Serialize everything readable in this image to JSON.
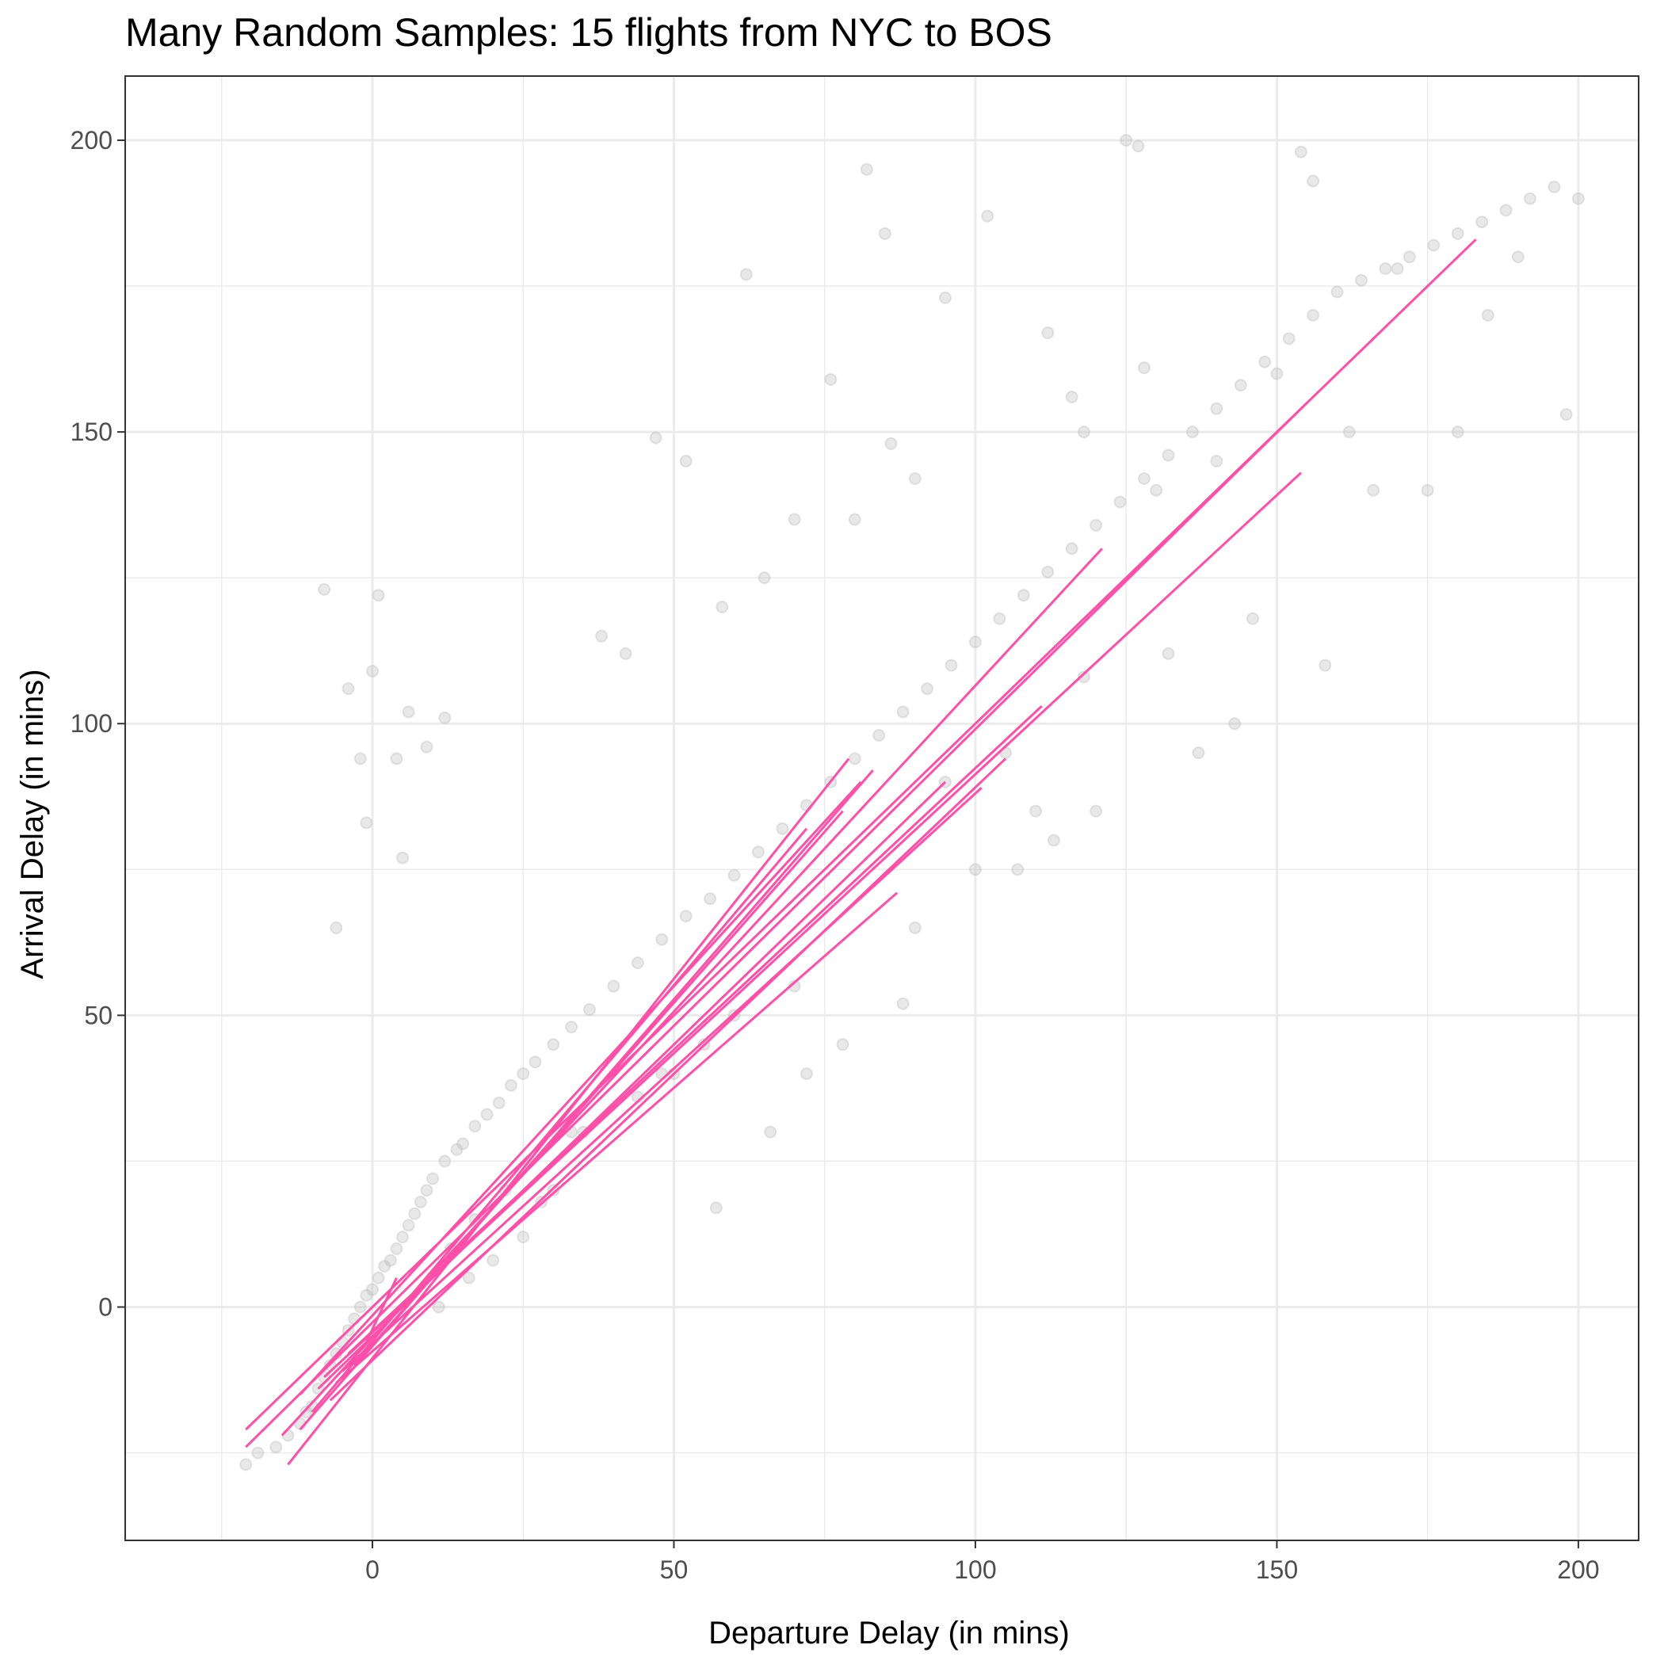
{
  "chart_data": {
    "type": "scatter",
    "title": "Many Random Samples: 15 flights from NYC to BOS",
    "xlabel": "Departure Delay (in mins)",
    "ylabel": "Arrival Delay (in mins)",
    "xlim": [
      -41,
      210
    ],
    "ylim": [
      -40,
      211
    ],
    "x_ticks": [
      0,
      50,
      100,
      150,
      200
    ],
    "y_ticks": [
      0,
      50,
      100,
      150,
      200
    ],
    "x_tick_labels": [
      "0",
      "50",
      "100",
      "150",
      "200"
    ],
    "y_tick_labels": [
      "0",
      "50",
      "100",
      "150",
      "200"
    ],
    "grid": true,
    "legend": "none",
    "colors": {
      "points": "#bebebe",
      "lines": "#ff4fa8",
      "panel_border": "#333333",
      "grid": "#ebebeb"
    },
    "series": [
      {
        "kind": "points",
        "x": [
          -21,
          -19,
          -16,
          -14,
          -12,
          -11,
          -10,
          -9,
          -8,
          -7,
          -6,
          -5,
          -4,
          -3,
          -2,
          -1,
          0,
          1,
          2,
          3,
          4,
          5,
          6,
          7,
          8,
          9,
          10,
          12,
          14,
          15,
          17,
          19,
          21,
          23,
          25,
          27,
          30,
          33,
          36,
          40,
          44,
          48,
          52,
          56,
          60,
          64,
          68,
          72,
          76,
          80,
          84,
          88,
          92,
          96,
          100,
          104,
          108,
          112,
          116,
          120,
          124,
          128,
          132,
          136,
          140,
          144,
          148,
          152,
          156,
          160,
          164,
          168,
          172,
          176,
          180,
          184,
          188,
          192,
          196,
          200,
          -8,
          -4,
          0,
          -2,
          1,
          4,
          6,
          9,
          12,
          62,
          82,
          85,
          95,
          102,
          125,
          127,
          154,
          156,
          47,
          52,
          38,
          42,
          5,
          -6,
          -1,
          128,
          112,
          116,
          118,
          70,
          76,
          80,
          65,
          58,
          86,
          90,
          130,
          140,
          150,
          162,
          170,
          185,
          198,
          57,
          66,
          72,
          78,
          88,
          107,
          113,
          120,
          137,
          143,
          158,
          175,
          190,
          35,
          48,
          55,
          60,
          25,
          28,
          30,
          20,
          16,
          11,
          13,
          17,
          22,
          26,
          33,
          44,
          50,
          70,
          90,
          100,
          110,
          95,
          105,
          118,
          132,
          146,
          166,
          180
        ],
        "y": [
          -27,
          -25,
          -24,
          -22,
          -20,
          -18,
          -17,
          -14,
          -12,
          -10,
          -8,
          -6,
          -4,
          -2,
          0,
          2,
          3,
          5,
          7,
          8,
          10,
          12,
          14,
          16,
          18,
          20,
          22,
          25,
          27,
          28,
          31,
          33,
          35,
          38,
          40,
          42,
          45,
          48,
          51,
          55,
          59,
          63,
          67,
          70,
          74,
          78,
          82,
          86,
          90,
          94,
          98,
          102,
          106,
          110,
          114,
          118,
          122,
          126,
          130,
          134,
          138,
          142,
          146,
          150,
          154,
          158,
          162,
          166,
          170,
          174,
          176,
          178,
          180,
          182,
          184,
          186,
          188,
          190,
          192,
          190,
          123,
          106,
          109,
          94,
          122,
          94,
          102,
          96,
          101,
          177,
          195,
          184,
          173,
          187,
          200,
          199,
          198,
          193,
          149,
          145,
          115,
          112,
          77,
          65,
          83,
          161,
          167,
          156,
          150,
          135,
          159,
          135,
          125,
          120,
          148,
          142,
          140,
          145,
          160,
          150,
          178,
          170,
          153,
          17,
          30,
          40,
          45,
          52,
          75,
          80,
          85,
          95,
          100,
          110,
          140,
          180,
          30,
          40,
          45,
          50,
          12,
          18,
          20,
          8,
          5,
          0,
          10,
          15,
          20,
          25,
          30,
          36,
          40,
          55,
          65,
          75,
          85,
          90,
          95,
          108,
          112,
          118,
          140,
          150
        ]
      },
      {
        "kind": "fitted-lines",
        "lines": [
          [
            -21,
            -21,
            183,
            183
          ],
          [
            -21,
            -24,
            155,
            155
          ],
          [
            -15,
            -22,
            121,
            130
          ],
          [
            -14,
            -27,
            79,
            94
          ],
          [
            -12,
            -21,
            83,
            92
          ],
          [
            -10,
            -18,
            72,
            82
          ],
          [
            -9,
            -14,
            95,
            90
          ],
          [
            -8,
            -12,
            154,
            143
          ],
          [
            -7,
            -16,
            105,
            94
          ],
          [
            -6,
            -13,
            87,
            71
          ],
          [
            -5,
            -11,
            101,
            89
          ],
          [
            -4,
            -8,
            111,
            103
          ],
          [
            -3,
            -10,
            78,
            85
          ],
          [
            -1,
            -6,
            4,
            5
          ],
          [
            -12,
            -15,
            81,
            90
          ]
        ]
      }
    ]
  }
}
